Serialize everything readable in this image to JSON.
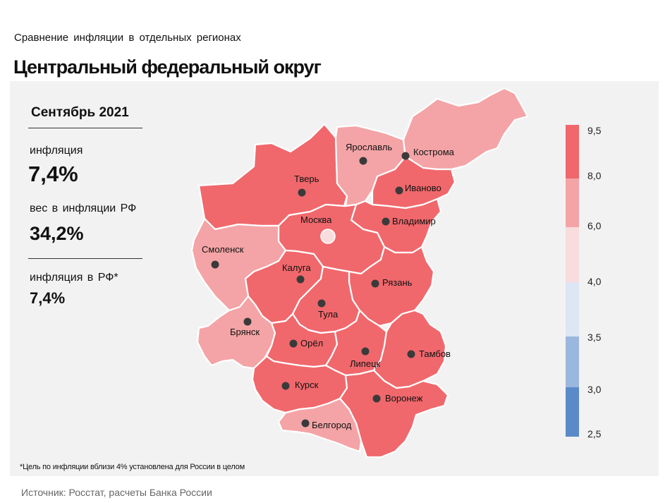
{
  "header": {
    "subtitle": "Сравнение  инфляции  в отдельных  регионах",
    "title": "Центральный федеральный округ"
  },
  "panel": {
    "period": "Сентябрь 2021",
    "inflation_label": "инфляция",
    "inflation_value": "7,4%",
    "weight_label": "вес в инфляции  РФ",
    "weight_value": "34,2%",
    "rf_label": "инфляция  в РФ*",
    "rf_value": "7,4%"
  },
  "footnote": "*Цель по инфляции вблизи 4% установлена для России в целом",
  "source": "Источник: Росстат, расчеты Банка России",
  "colors": {
    "dark_red": "#f0686c",
    "light_red": "#f4a4a6",
    "pale_red": "#f8dcde",
    "pale_blue": "#dde6f4",
    "light_blue": "#9ab7de",
    "blue": "#5b8ac8",
    "background": "#f2f2f2"
  },
  "legend": {
    "ticks": [
      "9,5",
      "8,0",
      "6,0",
      "4,0",
      "3,5",
      "3,0",
      "2,5"
    ]
  },
  "regions": [
    {
      "name": "Тверь",
      "class": "dark_red"
    },
    {
      "name": "Ярославль",
      "class": "light_red"
    },
    {
      "name": "Кострома",
      "class": "light_red"
    },
    {
      "name": "Иваново",
      "class": "dark_red"
    },
    {
      "name": "Владимир",
      "class": "dark_red"
    },
    {
      "name": "Москва",
      "class": "dark_red"
    },
    {
      "name": "Смоленск",
      "class": "light_red"
    },
    {
      "name": "Калуга",
      "class": "dark_red"
    },
    {
      "name": "Рязань",
      "class": "dark_red"
    },
    {
      "name": "Тула",
      "class": "dark_red"
    },
    {
      "name": "Брянск",
      "class": "light_red"
    },
    {
      "name": "Орёл",
      "class": "dark_red"
    },
    {
      "name": "Липецк",
      "class": "dark_red"
    },
    {
      "name": "Тамбов",
      "class": "dark_red"
    },
    {
      "name": "Курск",
      "class": "dark_red"
    },
    {
      "name": "Воронеж",
      "class": "dark_red"
    },
    {
      "name": "Белгород",
      "class": "light_red"
    }
  ]
}
